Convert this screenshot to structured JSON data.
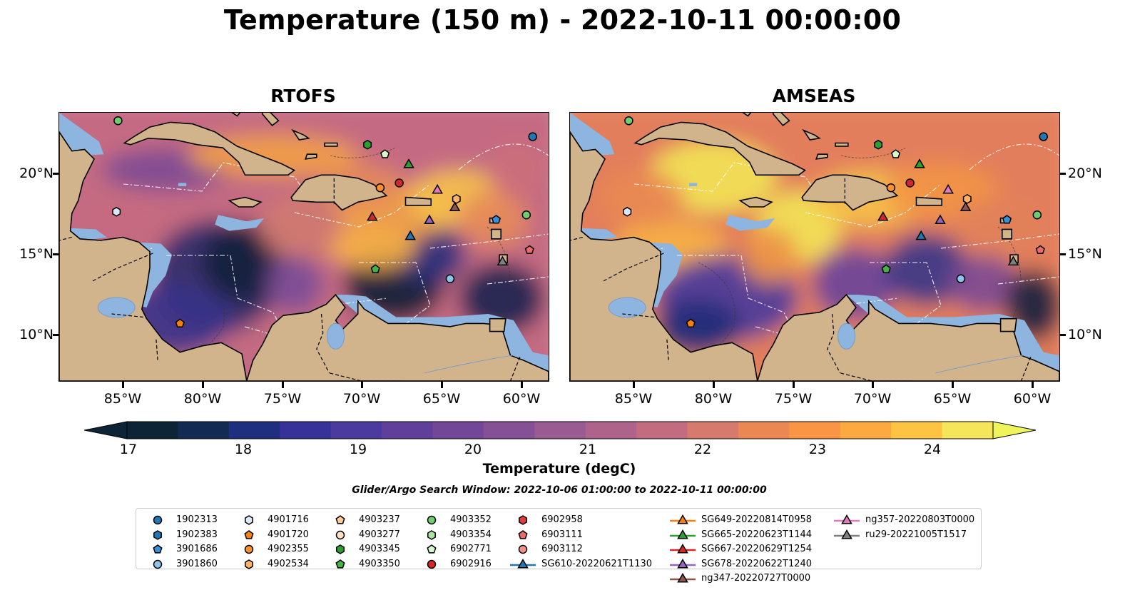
{
  "title": "Temperature (150 m) - 2022-10-11 00:00:00",
  "panels": [
    {
      "title": "RTOFS"
    },
    {
      "title": "AMSEAS"
    }
  ],
  "axes": {
    "lon_ticks": [
      "85°W",
      "80°W",
      "75°W",
      "70°W",
      "65°W",
      "60°W"
    ],
    "lat_ticks": [
      "20°N",
      "15°N",
      "10°N"
    ],
    "lon_range": [
      -89,
      -58.2
    ],
    "lat_range": [
      7,
      23.8
    ]
  },
  "colorbar": {
    "label": "Temperature (degC)",
    "ticks": [
      "17",
      "18",
      "19",
      "20",
      "21",
      "22",
      "23",
      "24"
    ],
    "range": [
      17,
      24.5
    ],
    "step": 0.5,
    "colors": [
      "#0d2436",
      "#132a52",
      "#1f2f80",
      "#36329a",
      "#4b3b9e",
      "#603f9b",
      "#734797",
      "#865096",
      "#9a5a92",
      "#ae638a",
      "#c36c80",
      "#d77a6e",
      "#eb8752",
      "#f99544",
      "#fcaa3f",
      "#fdc443",
      "#f4e55a"
    ],
    "under_color": "#0d2436",
    "over_color": "#eef45a"
  },
  "search_window": "Glider/Argo Search Window: 2022-10-06 01:00:00 to 2022-10-11 00:00:00",
  "legend": [
    {
      "label": "1902313",
      "marker": "circle",
      "color": "#1f77b4"
    },
    {
      "label": "1902383",
      "marker": "hexagon",
      "color": "#1f77b4"
    },
    {
      "label": "3901686",
      "marker": "pentagon",
      "color": "#3b8fd6"
    },
    {
      "label": "3901860",
      "marker": "circle",
      "color": "#8fc4ea"
    },
    {
      "label": "4901716",
      "marker": "hexagon",
      "color": "#dbe9f8"
    },
    {
      "label": "4901720",
      "marker": "pentagon",
      "color": "#ff7f0e"
    },
    {
      "label": "4902355",
      "marker": "circle",
      "color": "#ff8f2a"
    },
    {
      "label": "4902534",
      "marker": "hexagon",
      "color": "#ffb366"
    },
    {
      "label": "4903237",
      "marker": "pentagon",
      "color": "#ffcc99"
    },
    {
      "label": "4903277",
      "marker": "circle",
      "color": "#ffe0c0"
    },
    {
      "label": "4903345",
      "marker": "hexagon",
      "color": "#2ca02c"
    },
    {
      "label": "4903350",
      "marker": "pentagon",
      "color": "#44b344"
    },
    {
      "label": "4903352",
      "marker": "circle",
      "color": "#6fcf6f"
    },
    {
      "label": "4903354",
      "marker": "hexagon",
      "color": "#a8e6a0"
    },
    {
      "label": "6902771",
      "marker": "pentagon",
      "color": "#d8f7cf"
    },
    {
      "label": "6902916",
      "marker": "circle",
      "color": "#d62728"
    },
    {
      "label": "6902958",
      "marker": "hexagon",
      "color": "#e03c3c"
    },
    {
      "label": "6903111",
      "marker": "pentagon",
      "color": "#ee6a6a"
    },
    {
      "label": "6903112",
      "marker": "circle",
      "color": "#f5918a"
    },
    {
      "label": "SG610-20220621T1130",
      "marker": "triangle-line",
      "color": "#1f77b4"
    },
    {
      "label": "SG649-20220814T0958",
      "marker": "triangle-line",
      "color": "#ff7f0e"
    },
    {
      "label": "SG665-20220623T1144",
      "marker": "triangle-line",
      "color": "#2ca02c"
    },
    {
      "label": "SG667-20220629T1254",
      "marker": "triangle-line",
      "color": "#d62728"
    },
    {
      "label": "SG678-20220622T1240",
      "marker": "triangle-line",
      "color": "#9467bd"
    },
    {
      "label": "ng347-20220727T0000",
      "marker": "triangle-line",
      "color": "#8c564b"
    },
    {
      "label": "ng357-20220803T0000",
      "marker": "triangle-line",
      "color": "#e377c2"
    },
    {
      "label": "ru29-20221005T1517",
      "marker": "triangle-line",
      "color": "#7f7f7f"
    }
  ],
  "observations": [
    {
      "id": "1902313",
      "lon": -59.2,
      "lat": 22.3
    },
    {
      "id": "4903352",
      "lon": -85.3,
      "lat": 23.3
    },
    {
      "id": "4903345",
      "lon": -69.6,
      "lat": 21.8
    },
    {
      "id": "6902771",
      "lon": -68.5,
      "lat": 21.2
    },
    {
      "id": "SG665-20220623T1144",
      "lon": -67.0,
      "lat": 20.6
    },
    {
      "id": "4902355",
      "lon": -68.8,
      "lat": 19.1
    },
    {
      "id": "6902916",
      "lon": -67.6,
      "lat": 19.4
    },
    {
      "id": "ng357-20220803T0000",
      "lon": -65.2,
      "lat": 19.0
    },
    {
      "id": "4902534",
      "lon": -64.0,
      "lat": 18.4
    },
    {
      "id": "ng347-20220727T0000",
      "lon": -64.1,
      "lat": 17.9
    },
    {
      "id": "SG667-20220629T1254",
      "lon": -69.3,
      "lat": 17.3
    },
    {
      "id": "SG678-20220622T1240",
      "lon": -65.7,
      "lat": 17.1
    },
    {
      "id": "3901686",
      "lon": -61.5,
      "lat": 17.1
    },
    {
      "id": "4903352",
      "lon": -59.6,
      "lat": 17.4
    },
    {
      "id": "4901716",
      "lon": -85.4,
      "lat": 17.6
    },
    {
      "id": "SG610-20220621T1130",
      "lon": -66.9,
      "lat": 16.1
    },
    {
      "id": "6903111",
      "lon": -59.4,
      "lat": 15.2
    },
    {
      "id": "4903350",
      "lon": -69.1,
      "lat": 14.0
    },
    {
      "id": "3901860",
      "lon": -64.4,
      "lat": 13.4
    },
    {
      "id": "ru29-20221005T1517",
      "lon": -61.1,
      "lat": 14.5
    },
    {
      "id": "4901720",
      "lon": -81.4,
      "lat": 10.6
    }
  ]
}
